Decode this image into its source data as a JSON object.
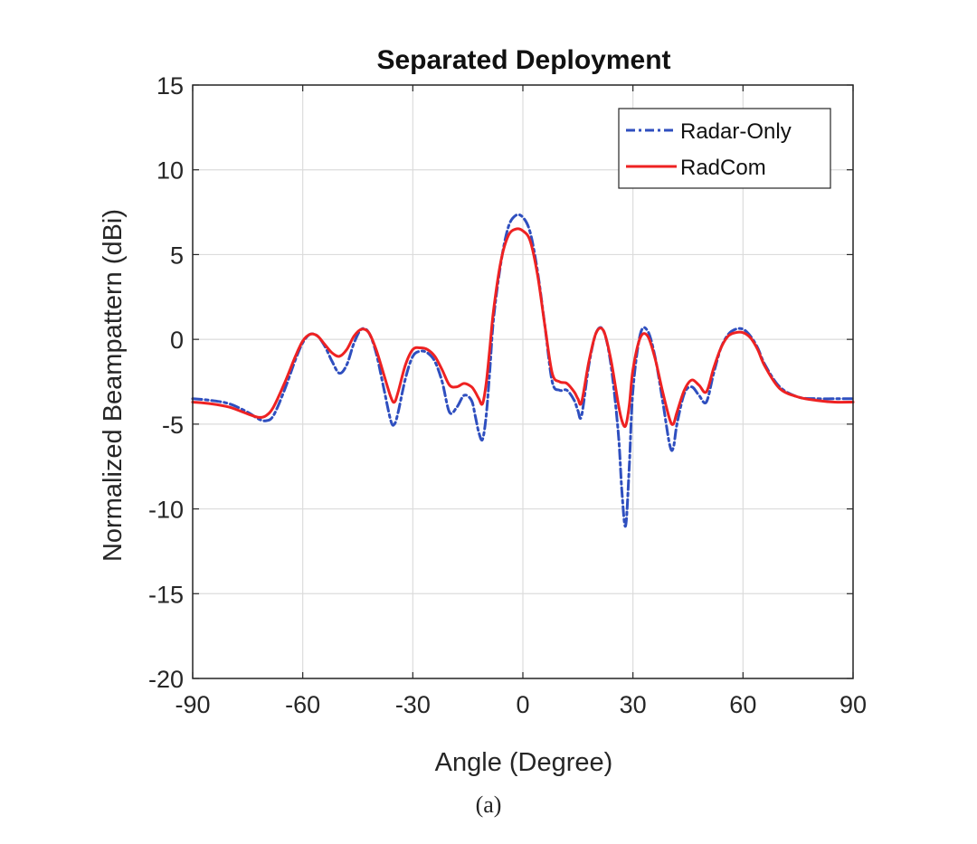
{
  "chart_data": {
    "type": "line",
    "title": "Separated Deployment",
    "xlabel": "Angle (Degree)",
    "ylabel": "Normalized Beampattern (dBi)",
    "xlim": [
      -90,
      90
    ],
    "ylim": [
      -20,
      15
    ],
    "xticks": [
      -90,
      -60,
      -30,
      0,
      30,
      60,
      90
    ],
    "yticks": [
      -20,
      -15,
      -10,
      -5,
      0,
      5,
      10,
      15
    ],
    "grid": true,
    "legend_position": "top-right",
    "series": [
      {
        "name": "Radar-Only",
        "color": "#2f4fbf",
        "style": "dash-dot",
        "x": [
          -90,
          -85,
          -80,
          -75,
          -72,
          -70,
          -68,
          -65,
          -62,
          -60,
          -58,
          -56,
          -54,
          -52,
          -50,
          -48,
          -46,
          -44,
          -42,
          -40,
          -38,
          -36,
          -35,
          -34,
          -32,
          -30,
          -28,
          -26,
          -24,
          -22,
          -20,
          -18,
          -16,
          -14,
          -13,
          -12,
          -11,
          -10,
          -9,
          -8,
          -6,
          -4,
          -2,
          0,
          2,
          4,
          6,
          8,
          10,
          12,
          14,
          15,
          16,
          18,
          20,
          22,
          24,
          26,
          27,
          28,
          29,
          30,
          32,
          34,
          36,
          38,
          40,
          41,
          42,
          44,
          46,
          48,
          50,
          52,
          54,
          56,
          58,
          60,
          62,
          64,
          66,
          70,
          75,
          80,
          85,
          90
        ],
        "y": [
          -3.5,
          -3.6,
          -3.8,
          -4.3,
          -4.7,
          -4.8,
          -4.5,
          -3.0,
          -1.2,
          -0.2,
          0.3,
          0.2,
          -0.4,
          -1.3,
          -2.0,
          -1.5,
          -0.2,
          0.6,
          0.4,
          -0.8,
          -2.8,
          -4.8,
          -5.0,
          -4.3,
          -2.3,
          -1.0,
          -0.7,
          -0.8,
          -1.3,
          -2.5,
          -4.3,
          -4.0,
          -3.3,
          -3.6,
          -4.5,
          -5.5,
          -5.9,
          -4.5,
          -1.8,
          1.2,
          4.5,
          6.6,
          7.3,
          7.2,
          6.3,
          4.0,
          0.8,
          -2.5,
          -3.0,
          -3.0,
          -3.6,
          -4.2,
          -4.5,
          -1.5,
          0.4,
          0.5,
          -1.5,
          -5.5,
          -9.0,
          -11.0,
          -7.5,
          -3.0,
          0.3,
          0.5,
          -1.0,
          -3.5,
          -6.2,
          -6.4,
          -5.0,
          -3.2,
          -2.8,
          -3.3,
          -3.7,
          -2.0,
          -0.5,
          0.3,
          0.6,
          0.6,
          0.2,
          -0.5,
          -1.5,
          -2.8,
          -3.4,
          -3.5,
          -3.5,
          -3.5
        ]
      },
      {
        "name": "RadCom",
        "color": "#ee2222",
        "style": "solid",
        "x": [
          -90,
          -85,
          -80,
          -75,
          -72,
          -70,
          -68,
          -65,
          -62,
          -60,
          -58,
          -56,
          -54,
          -52,
          -50,
          -48,
          -46,
          -44,
          -42,
          -40,
          -38,
          -36,
          -35,
          -34,
          -32,
          -30,
          -28,
          -26,
          -24,
          -22,
          -20,
          -18,
          -16,
          -14,
          -13,
          -12,
          -11,
          -10,
          -9,
          -8,
          -6,
          -4,
          -2,
          0,
          2,
          4,
          6,
          8,
          10,
          12,
          14,
          15,
          16,
          18,
          20,
          22,
          24,
          26,
          27,
          28,
          29,
          30,
          32,
          34,
          36,
          38,
          40,
          41,
          42,
          44,
          46,
          48,
          50,
          52,
          54,
          56,
          58,
          60,
          62,
          64,
          66,
          70,
          75,
          80,
          85,
          90
        ],
        "y": [
          -3.7,
          -3.8,
          -4.0,
          -4.4,
          -4.6,
          -4.5,
          -4.0,
          -2.6,
          -1.0,
          -0.1,
          0.3,
          0.2,
          -0.3,
          -0.8,
          -1.0,
          -0.6,
          0.2,
          0.6,
          0.4,
          -0.6,
          -2.0,
          -3.4,
          -3.7,
          -3.1,
          -1.5,
          -0.6,
          -0.5,
          -0.6,
          -1.0,
          -1.8,
          -2.7,
          -2.8,
          -2.6,
          -2.8,
          -3.1,
          -3.5,
          -3.8,
          -2.6,
          -0.5,
          1.7,
          4.6,
          6.1,
          6.5,
          6.4,
          5.8,
          3.8,
          0.8,
          -2.0,
          -2.5,
          -2.6,
          -3.1,
          -3.5,
          -3.7,
          -1.3,
          0.4,
          0.5,
          -1.2,
          -3.8,
          -4.8,
          -5.1,
          -3.9,
          -1.8,
          0.1,
          0.2,
          -1.1,
          -3.0,
          -4.7,
          -5.0,
          -4.3,
          -3.0,
          -2.4,
          -2.7,
          -3.1,
          -1.7,
          -0.5,
          0.2,
          0.4,
          0.4,
          0.1,
          -0.6,
          -1.6,
          -2.9,
          -3.4,
          -3.6,
          -3.7,
          -3.7
        ]
      }
    ]
  },
  "caption": "(a)"
}
